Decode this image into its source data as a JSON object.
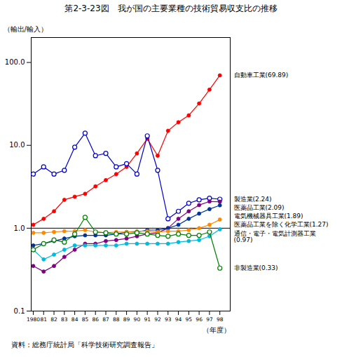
{
  "chart_data": {
    "type": "line",
    "title": "第2-3-23図　我が国の主要業種の技術貿易収支比の推移",
    "ylabel": "（輸出/輸入）",
    "xlabel": "（年度）",
    "source": "資料：総務庁統計局「科学技術研究調査報告」",
    "log": "y",
    "grid": false,
    "legend": false,
    "x": [
      1980,
      1981,
      1982,
      1983,
      1984,
      1985,
      1986,
      1987,
      1988,
      1989,
      1990,
      1991,
      1992,
      1993,
      1994,
      1995,
      1996,
      1997,
      1998
    ],
    "xlim": [
      1979.8,
      1999.0
    ],
    "xticks": [
      1980,
      {
        "value": 1981,
        "label": "81"
      },
      {
        "value": 1982,
        "label": "82"
      },
      {
        "value": 1983,
        "label": "83"
      },
      {
        "value": 1984,
        "label": "84"
      },
      {
        "value": 1985,
        "label": "85"
      },
      {
        "value": 1986,
        "label": "86"
      },
      {
        "value": 1987,
        "label": "87"
      },
      {
        "value": 1988,
        "label": "88"
      },
      {
        "value": 1989,
        "label": "89"
      },
      {
        "value": 1990,
        "label": "90"
      },
      {
        "value": 1991,
        "label": "91"
      },
      {
        "value": 1992,
        "label": "92"
      },
      {
        "value": 1993,
        "label": "93"
      },
      {
        "value": 1994,
        "label": "94"
      },
      {
        "value": 1995,
        "label": "95"
      },
      {
        "value": 1996,
        "label": "96"
      },
      {
        "value": 1997,
        "label": "97"
      },
      {
        "value": 1998,
        "label": "98"
      }
    ],
    "ylim": [
      0.1,
      200.0
    ],
    "yticks": [
      0.1,
      {
        "value": 1.0,
        "label": "1.0"
      },
      {
        "value": 10.0,
        "label": "10.0"
      },
      {
        "value": 100.0,
        "label": "100.0"
      }
    ],
    "hlines": [
      1.0
    ],
    "series": [
      {
        "name": "自動車工業(69.89)",
        "color": "#ff0000",
        "marker": "circle",
        "values": [
          1.1,
          1.3,
          1.6,
          2.2,
          2.4,
          2.6,
          3.2,
          3.8,
          4.5,
          5.5,
          8.0,
          12.0,
          7.5,
          15.0,
          19.0,
          23.0,
          32.0,
          47.0,
          69.89
        ]
      },
      {
        "name": "製造業(2.24)",
        "color": "#0000cc",
        "marker": "circle-open",
        "values": [
          4.5,
          5.5,
          4.5,
          5.0,
          9.5,
          14.0,
          7.5,
          8.0,
          5.5,
          6.0,
          4.5,
          13.0,
          5.0,
          1.3,
          1.6,
          2.0,
          2.2,
          2.3,
          2.24
        ]
      },
      {
        "name": "医薬品工業(2.09)",
        "color": "#800080",
        "marker": "circle",
        "values": [
          0.35,
          0.3,
          0.35,
          0.45,
          0.55,
          0.65,
          0.65,
          0.7,
          0.72,
          0.75,
          0.8,
          0.85,
          0.88,
          1.0,
          1.3,
          1.6,
          1.9,
          2.1,
          2.09
        ]
      },
      {
        "name": "電気機械器具工業(1.89)",
        "color": "#003399",
        "marker": "circle",
        "values": [
          0.62,
          0.65,
          0.7,
          0.75,
          0.8,
          0.82,
          0.82,
          0.82,
          0.85,
          0.9,
          0.9,
          0.95,
          0.95,
          1.0,
          1.1,
          1.3,
          1.5,
          1.7,
          1.89
        ]
      },
      {
        "name": "医薬品工業を除く化学工業(1.27)",
        "color": "#ff8800",
        "marker": "circle",
        "values": [
          0.88,
          0.88,
          0.9,
          0.92,
          0.92,
          0.95,
          0.9,
          0.88,
          0.9,
          0.9,
          0.92,
          0.92,
          0.9,
          0.92,
          0.92,
          0.95,
          1.0,
          1.1,
          1.27
        ]
      },
      {
        "name": "通信・電子・電気計測器工業\n(0.97)",
        "color": "#00bbdd",
        "marker": "circle",
        "values": [
          0.55,
          0.42,
          0.48,
          0.55,
          0.62,
          0.62,
          0.62,
          0.62,
          0.62,
          0.65,
          0.65,
          0.65,
          0.65,
          0.65,
          0.68,
          0.7,
          0.72,
          0.8,
          0.97
        ]
      },
      {
        "name": "非製造業(0.33)",
        "color": "#008000",
        "marker": "circle-open",
        "values": [
          0.55,
          0.65,
          0.72,
          0.68,
          0.85,
          1.35,
          0.9,
          0.88,
          0.85,
          0.85,
          0.88,
          0.85,
          0.82,
          0.8,
          0.85,
          0.82,
          0.82,
          0.9,
          0.33
        ]
      }
    ],
    "annotations": [
      {
        "text": "自動車工業(69.89)",
        "x": 1998,
        "y": 69.89
      },
      {
        "text": "製造業(2.24)",
        "x": 1998,
        "y": 2.24
      },
      {
        "text": "医薬品工業(2.09)",
        "x": 1998,
        "y": 2.09
      },
      {
        "text": "電気機械器具工業(1.89)",
        "x": 1998,
        "y": 1.89
      },
      {
        "text": "医薬品工業を除く化学工業(1.27)",
        "x": 1998,
        "y": 1.27
      },
      {
        "text": "通信・電子・電気計測器工業\n(0.97)",
        "x": 1998,
        "y": 0.97
      },
      {
        "text": "非製造業(0.33)",
        "x": 1998,
        "y": 0.33
      }
    ]
  }
}
